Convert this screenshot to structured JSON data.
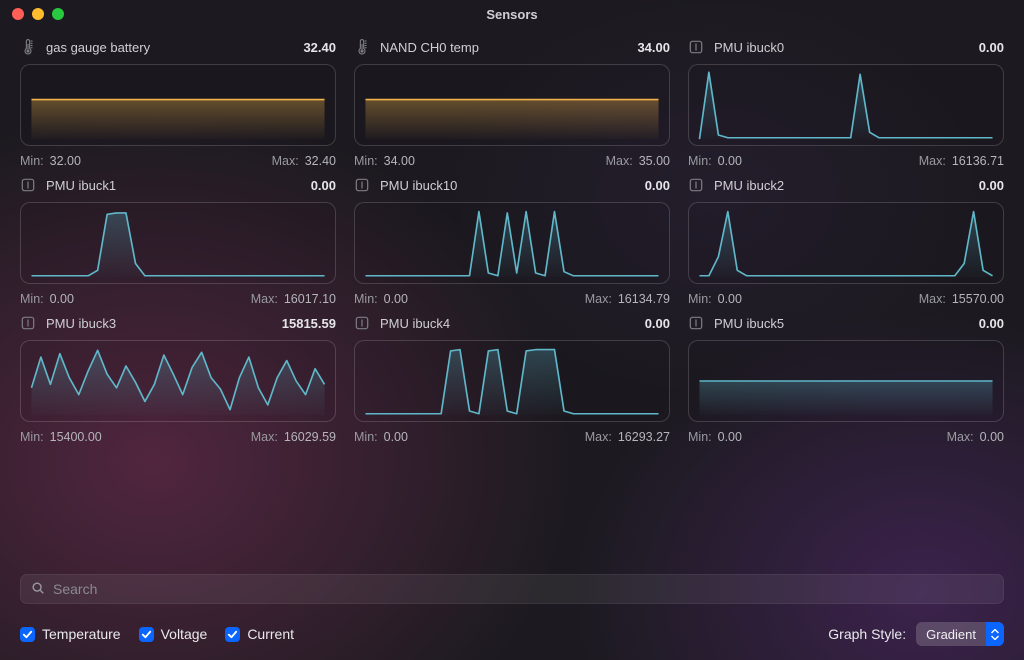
{
  "window": {
    "title": "Sensors"
  },
  "traffic_colors": {
    "close": "#ff5f57",
    "min": "#febc2e",
    "max": "#28c840"
  },
  "colors": {
    "temp_stroke": "#f0b24a",
    "temp_fill_top": "rgba(240,178,74,0.35)",
    "temp_fill_bot": "rgba(240,178,74,0.02)",
    "curr_stroke": "#5fb7c9",
    "curr_fill_top": "rgba(95,183,201,0.28)",
    "curr_fill_bot": "rgba(95,183,201,0.02)",
    "checkbox_bg": "#0a66ff",
    "checkbox_check": "#ffffff",
    "select_arrow_bg": "#0a66ff"
  },
  "min_label": "Min:",
  "max_label": "Max:",
  "sensors": [
    {
      "name": "gas gauge battery",
      "icon": "thermo",
      "value": "32.40",
      "min": "32.00",
      "max": "32.40",
      "style": "temp",
      "series": [
        58,
        58,
        58,
        58,
        58,
        58,
        58,
        58,
        58,
        58,
        58,
        58,
        58,
        58,
        58,
        58,
        58,
        58,
        58,
        58,
        58,
        58,
        58,
        58,
        58,
        58,
        58,
        58,
        58,
        58,
        58,
        58
      ]
    },
    {
      "name": "NAND CH0 temp",
      "icon": "thermo",
      "value": "34.00",
      "min": "34.00",
      "max": "35.00",
      "style": "temp",
      "series": [
        58,
        58,
        58,
        58,
        58,
        58,
        58,
        58,
        58,
        58,
        58,
        58,
        58,
        58,
        58,
        58,
        58,
        58,
        58,
        58,
        58,
        58,
        58,
        58,
        58,
        58,
        58,
        58,
        58,
        58,
        58,
        58
      ]
    },
    {
      "name": "PMU ibuck0",
      "icon": "current",
      "value": "0.00",
      "min": "0.00",
      "max": "16136.71",
      "style": "curr",
      "series": [
        0,
        98,
        6,
        2,
        2,
        2,
        2,
        2,
        2,
        2,
        2,
        2,
        2,
        2,
        2,
        2,
        2,
        95,
        10,
        2,
        2,
        2,
        2,
        2,
        2,
        2,
        2,
        2,
        2,
        2,
        2,
        2
      ]
    },
    {
      "name": "PMU ibuck1",
      "icon": "current",
      "value": "0.00",
      "min": "0.00",
      "max": "16017.10",
      "style": "curr",
      "series": [
        2,
        2,
        2,
        2,
        2,
        2,
        2,
        10,
        92,
        94,
        94,
        20,
        2,
        2,
        2,
        2,
        2,
        2,
        2,
        2,
        2,
        2,
        2,
        2,
        2,
        2,
        2,
        2,
        2,
        2,
        2,
        2
      ]
    },
    {
      "name": "PMU ibuck10",
      "icon": "current",
      "value": "0.00",
      "min": "0.00",
      "max": "16134.79",
      "style": "curr",
      "series": [
        2,
        2,
        2,
        2,
        2,
        2,
        2,
        2,
        2,
        2,
        2,
        2,
        96,
        6,
        2,
        94,
        6,
        96,
        6,
        2,
        96,
        8,
        2,
        2,
        2,
        2,
        2,
        2,
        2,
        2,
        2,
        2
      ]
    },
    {
      "name": "PMU ibuck2",
      "icon": "current",
      "value": "0.00",
      "min": "0.00",
      "max": "15570.00",
      "style": "curr",
      "series": [
        2,
        2,
        30,
        96,
        10,
        2,
        2,
        2,
        2,
        2,
        2,
        2,
        2,
        2,
        2,
        2,
        2,
        2,
        2,
        2,
        2,
        2,
        2,
        2,
        2,
        2,
        2,
        2,
        20,
        96,
        10,
        2
      ]
    },
    {
      "name": "PMU ibuck3",
      "icon": "current",
      "value": "15815.59",
      "min": "15400.00",
      "max": "16029.59",
      "style": "curr",
      "series": [
        40,
        85,
        45,
        90,
        55,
        30,
        65,
        95,
        60,
        40,
        72,
        48,
        20,
        45,
        88,
        60,
        30,
        70,
        92,
        55,
        38,
        8,
        55,
        85,
        40,
        15,
        55,
        80,
        50,
        30,
        68,
        45
      ]
    },
    {
      "name": "PMU ibuck4",
      "icon": "current",
      "value": "0.00",
      "min": "0.00",
      "max": "16293.27",
      "style": "curr",
      "series": [
        2,
        2,
        2,
        2,
        2,
        2,
        2,
        2,
        2,
        94,
        96,
        6,
        2,
        94,
        96,
        6,
        2,
        94,
        96,
        96,
        96,
        6,
        2,
        2,
        2,
        2,
        2,
        2,
        2,
        2,
        2,
        2
      ]
    },
    {
      "name": "PMU ibuck5",
      "icon": "current",
      "value": "0.00",
      "min": "0.00",
      "max": "0.00",
      "style": "curr",
      "series": [
        50,
        50,
        50,
        50,
        50,
        50,
        50,
        50,
        50,
        50,
        50,
        50,
        50,
        50,
        50,
        50,
        50,
        50,
        50,
        50,
        50,
        50,
        50,
        50,
        50,
        50,
        50,
        50,
        50,
        50,
        50,
        50
      ]
    }
  ],
  "search": {
    "placeholder": "Search",
    "value": ""
  },
  "filters": [
    {
      "label": "Temperature",
      "checked": true
    },
    {
      "label": "Voltage",
      "checked": true
    },
    {
      "label": "Current",
      "checked": true
    }
  ],
  "graph_style": {
    "label": "Graph Style:",
    "value": "Gradient"
  }
}
